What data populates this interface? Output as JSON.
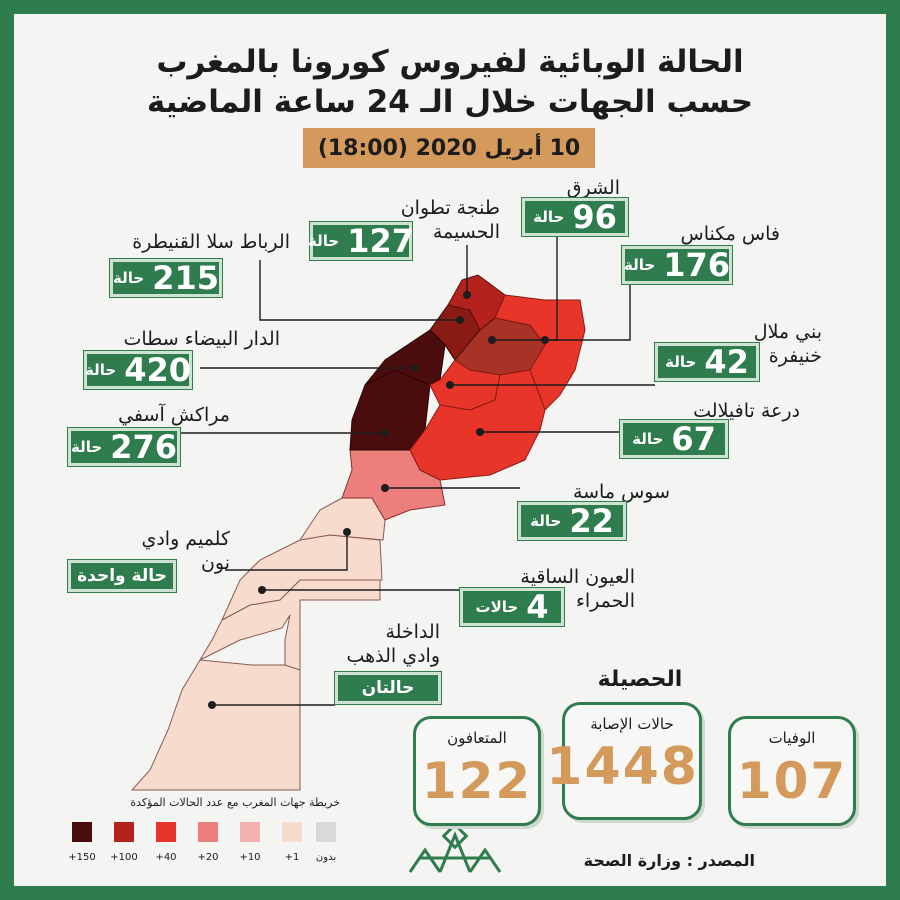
{
  "header": {
    "title_line1": "الحالة الوبائية لفيروس كورونا بالمغرب",
    "title_line2": "حسب الجهات خلال الـ 24 ساعة الماضية",
    "date": "10 أبريل 2020 (18:00)"
  },
  "colors": {
    "brand_green": "#2f7d4e",
    "accent_orange": "#d49a5c",
    "legend": [
      "#4a0c0c",
      "#b3221c",
      "#e8352a",
      "#ec7e7b",
      "#f2b2ad",
      "#f7dccd",
      "#d9d9d9"
    ]
  },
  "regions": {
    "tanger": {
      "name_line1": "طنجة تطوان",
      "name_line2": "الحسيمة",
      "count": "127",
      "unit": "حالة"
    },
    "oriental": {
      "name_line1": "الشرق",
      "count": "96",
      "unit": "حالة"
    },
    "fes": {
      "name_line1": "فاس مكناس",
      "count": "176",
      "unit": "حالة"
    },
    "rabat": {
      "name_line1": "الرباط سلا القنيطرة",
      "count": "215",
      "unit": "حالة"
    },
    "beni": {
      "name_line1": "بني ملال",
      "name_line2": "خنيفرة",
      "count": "42",
      "unit": "حالة"
    },
    "casa": {
      "name_line1": "الدار البيضاء سطات",
      "count": "420",
      "unit": "حالة"
    },
    "draa": {
      "name_line1": "درعة تافيلالت",
      "count": "67",
      "unit": "حالة"
    },
    "marrakech": {
      "name_line1": "مراكش آسفي",
      "count": "276",
      "unit": "حالة"
    },
    "souss": {
      "name_line1": "سوس ماسة",
      "count": "22",
      "unit": "حالة"
    },
    "guelmim": {
      "name_line1": "كلميم وادي",
      "name_line2": "نون",
      "label": "حالة واحدة"
    },
    "laayoune": {
      "name_line1": "العيون الساقية",
      "name_line2": "الحمراء",
      "count": "4",
      "unit": "حالات"
    },
    "dakhla": {
      "name_line1": "الداخلة",
      "name_line2": "وادي الذهب",
      "label": "حالتان"
    }
  },
  "totals": {
    "title": "الحصيلة",
    "recovered": {
      "label": "المتعافون",
      "value": "122"
    },
    "cases": {
      "label": "حالات الإصابة",
      "value": "1448"
    },
    "deaths": {
      "label": "الوفيات",
      "value": "107"
    }
  },
  "legend": {
    "title": "خريطة جهات المغرب مع عدد الحالات المؤكدة",
    "items": [
      "+150",
      "+100",
      "+40",
      "+20",
      "+10",
      "+1",
      "بدون"
    ]
  },
  "footer": {
    "source": "المصدر : وزارة الصحة"
  }
}
